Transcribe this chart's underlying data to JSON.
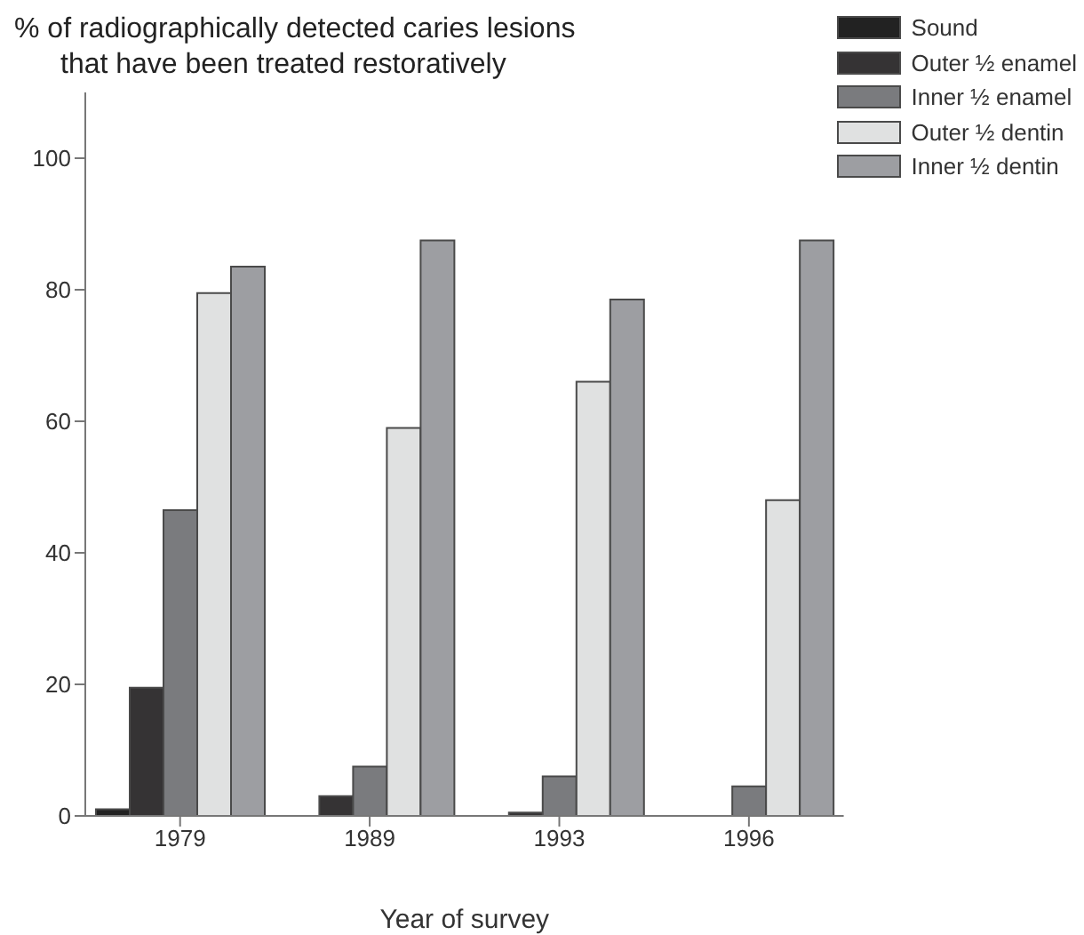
{
  "chart_data": {
    "type": "bar",
    "title": "% of radiographically detected caries lesions\nthat have been treated restoratively",
    "xlabel": "Year of survey",
    "categories": [
      "1979",
      "1989",
      "1993",
      "1996"
    ],
    "series": [
      {
        "name": "Sound",
        "color": "#222222",
        "values": [
          1,
          0,
          0,
          0
        ]
      },
      {
        "name": "Outer ½ enamel",
        "color": "#353334",
        "values": [
          19.5,
          3,
          0.5,
          0
        ]
      },
      {
        "name": "Inner ½ enamel",
        "color": "#7a7b7e",
        "values": [
          46.5,
          7.5,
          6,
          4.5
        ]
      },
      {
        "name": "Outer ½ dentin",
        "color": "#e0e1e1",
        "values": [
          79.5,
          59,
          66,
          48
        ]
      },
      {
        "name": "Inner ½ dentin",
        "color": "#9d9ea2",
        "values": [
          83.5,
          87.5,
          78.5,
          87.5
        ]
      }
    ],
    "ylim": [
      0,
      110
    ],
    "yticks": [
      0,
      20,
      40,
      60,
      80,
      100
    ],
    "grid": false,
    "legend": "top right"
  }
}
